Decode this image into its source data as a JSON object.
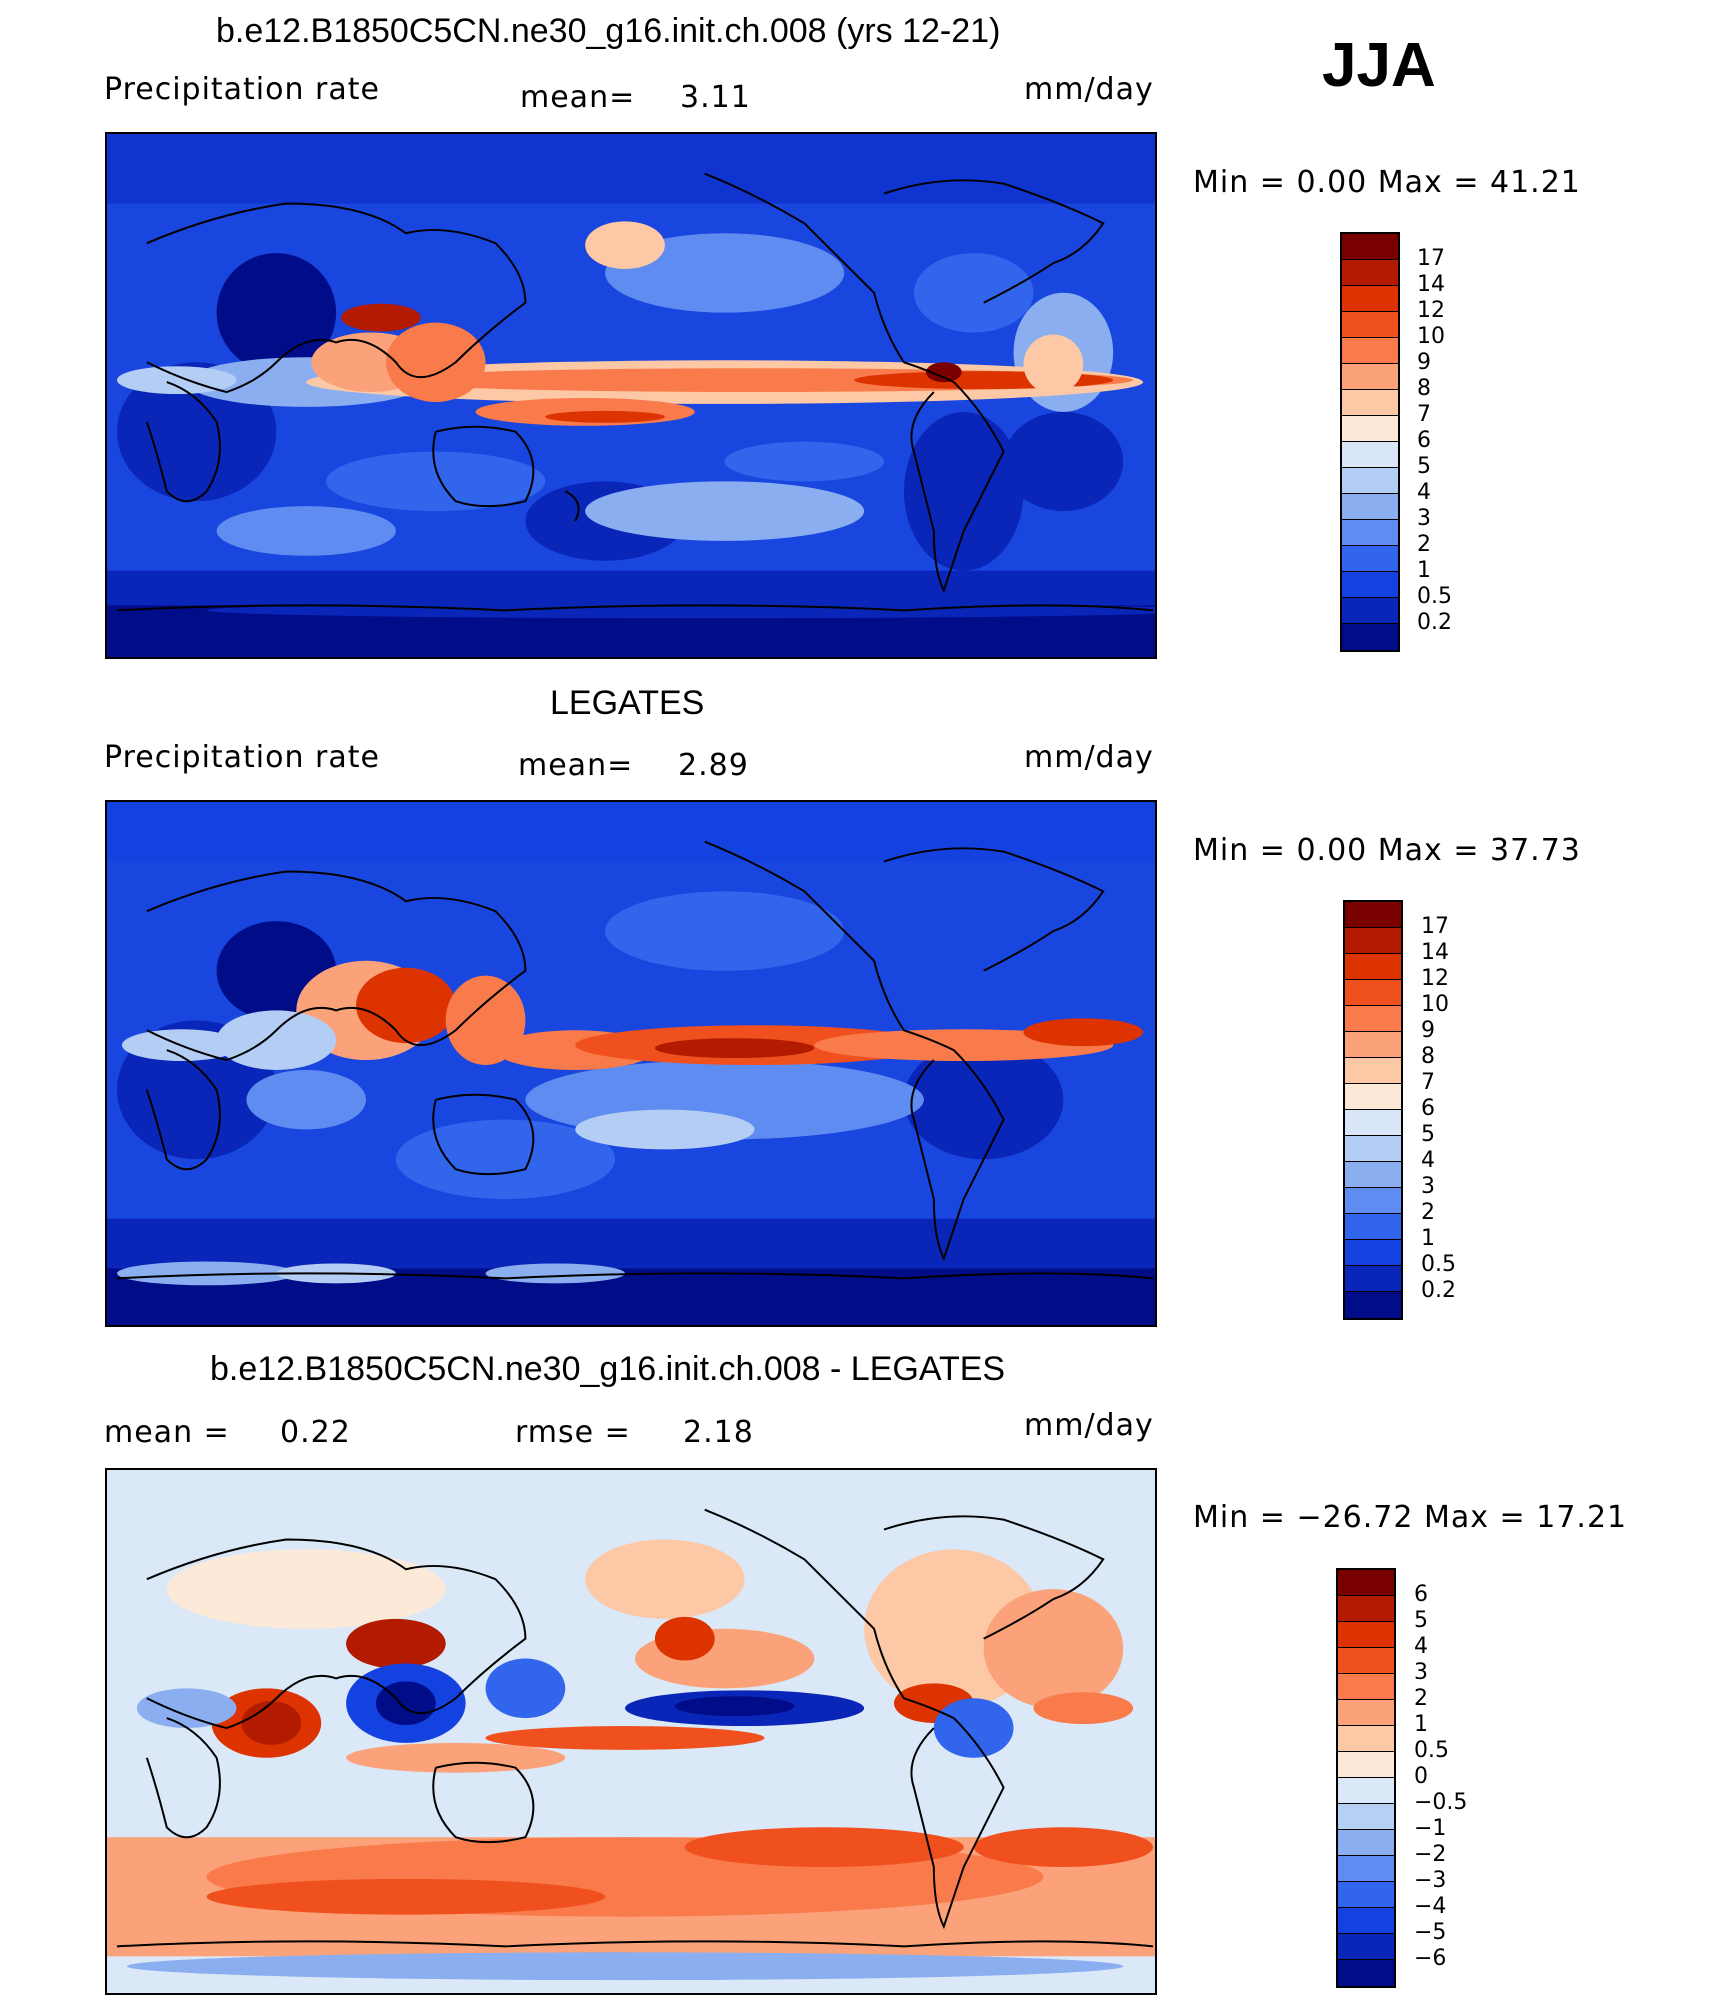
{
  "season": "JJA",
  "panels": [
    {
      "title": "b.e12.B1850C5CN.ne30_g16.init.ch.008 (yrs 12-21)",
      "left_label": "Precipitation  rate",
      "center_label": "mean=",
      "center_value": "3.11",
      "right_label": "mm/day",
      "minmax": "Min  =    0.00  Max  =   41.21",
      "colorbar_labels": [
        "17",
        "14",
        "12",
        "10",
        "9",
        "8",
        "7",
        "6",
        "5",
        "4",
        "3",
        "2",
        "1",
        "0.5",
        "0.2"
      ]
    },
    {
      "title": "LEGATES",
      "left_label": "Precipitation  rate",
      "center_label": "mean=",
      "center_value": "2.89",
      "right_label": "mm/day",
      "minmax": "Min  =    0.00  Max  =   37.73",
      "colorbar_labels": [
        "17",
        "14",
        "12",
        "10",
        "9",
        "8",
        "7",
        "6",
        "5",
        "4",
        "3",
        "2",
        "1",
        "0.5",
        "0.2"
      ]
    },
    {
      "title": "b.e12.B1850C5CN.ne30_g16.init.ch.008 - LEGATES",
      "left_label": "mean  =",
      "left_value": "0.22",
      "center_label": "rmse  =",
      "center_value": "2.18",
      "right_label": "mm/day",
      "minmax": "Min  = −26.72  Max  =    17.21",
      "colorbar_labels": [
        "6",
        "5",
        "4",
        "3",
        "2",
        "1",
        "0.5",
        "0",
        "−0.5",
        "−1",
        "−2",
        "−3",
        "−4",
        "−5",
        "−6"
      ]
    }
  ],
  "colors": {
    "precip_scale": [
      "#7a0000",
      "#b31b00",
      "#dc3300",
      "#f0501e",
      "#f97a4a",
      "#fba27a",
      "#fcc8a6",
      "#fde9d8",
      "#d8e6f7",
      "#b3cdf4",
      "#8aaef0",
      "#5f8cf0",
      "#3166ec",
      "#1442e0",
      "#0a26b8",
      "#000c88"
    ],
    "diff_scale": [
      "#7a0000",
      "#b31b00",
      "#dc3300",
      "#f0501e",
      "#f97a4a",
      "#fba27a",
      "#fcc8a6",
      "#fde9d8",
      "#dbe8f8",
      "#b8cff4",
      "#8aaef0",
      "#5f8cf0",
      "#3166ec",
      "#1442e0",
      "#0a26b8",
      "#000c88"
    ]
  }
}
